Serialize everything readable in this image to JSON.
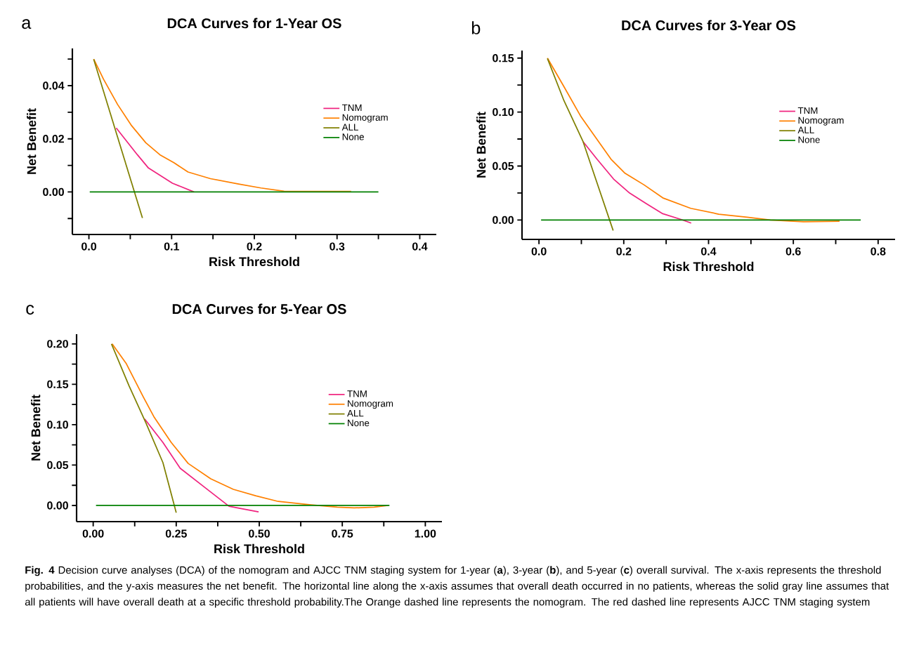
{
  "chart_data": [
    {
      "type": "line",
      "title": "DCA Curves for 1-Year OS",
      "xlabel": "Risk Threshold",
      "ylabel": "Net Benefit",
      "legend": "right",
      "annotations": [
        "a",
        "**Fig. 4** Decision curve analyses (DCA) of the nomogram and AJCC TNM staging system for 1-year (**a**), 3-year (**b**), and 5-year (**c**) overall survival. The x-axis represents the threshold probabilities, and the y-axis measures the net benefit. The horizontal line along the x-axis assumes that overall death occurred in no patients, whereas the solid gray line assumes that all patients will have overall death at a specific threshold probability.The Orange dashed line represents the nomogram. The red dashed line represents AJCC TNM staging system"
      ],
      "xlim": [
        -0.02,
        0.42
      ],
      "ylim": [
        -0.016,
        0.054
      ],
      "xticks": [
        {
          "value": 0,
          "label": "0.0"
        },
        {
          "value": 0.05,
          "label": null
        },
        {
          "value": 0.1,
          "label": "0.1"
        },
        {
          "value": 0.15,
          "label": null
        },
        {
          "value": 0.2,
          "label": "0.2"
        },
        {
          "value": 0.25,
          "label": null
        },
        {
          "value": 0.3,
          "label": "0.3"
        },
        {
          "value": 0.35,
          "label": null
        },
        {
          "value": 0.4,
          "label": "0.4"
        }
      ],
      "yticks": [
        {
          "value": -0.01,
          "label": null
        },
        {
          "value": 0,
          "label": "0.00"
        },
        {
          "value": 0.01,
          "label": null
        },
        {
          "value": 0.02,
          "label": "0.02"
        },
        {
          "value": 0.03,
          "label": null
        },
        {
          "value": 0.04,
          "label": "0.04"
        },
        {
          "value": 0.05,
          "label": null
        }
      ],
      "series": [
        {
          "name": "TNM",
          "color": "#f0247f",
          "x": [
            0.033,
            0.0586,
            0.072,
            0.101,
            0.127
          ],
          "values": [
            0.0241,
            0.014,
            0.009,
            0.0033,
            0.0
          ]
        },
        {
          "name": "Nomogram",
          "color": "#ff8000",
          "x": [
            0.0058,
            0.0177,
            0.0347,
            0.0517,
            0.0688,
            0.0858,
            0.1028,
            0.1198,
            0.147,
            0.181,
            0.208,
            0.236,
            0.283,
            0.317
          ],
          "values": [
            0.05,
            0.0424,
            0.0329,
            0.0249,
            0.0185,
            0.014,
            0.011,
            0.0075,
            0.005,
            0.003,
            0.0015,
            0.0003,
            0.0002,
            0.0002
          ]
        },
        {
          "name": "ALL",
          "color": "#808000",
          "x": [
            0.0058,
            0.0647
          ],
          "values": [
            0.0499,
            -0.0098
          ]
        },
        {
          "name": "None",
          "color": "#008000",
          "x": [
            0.001,
            0.35
          ],
          "values": [
            0,
            0
          ]
        }
      ]
    },
    {
      "type": "line",
      "title": "DCA Curves for 3-Year OS",
      "xlabel": "Risk Threshold",
      "ylabel": "Net Benefit",
      "legend": "right",
      "annotations": [
        "b"
      ],
      "xlim": [
        -0.04,
        0.84
      ],
      "ylim": [
        -0.018,
        0.157
      ],
      "xticks": [
        {
          "value": 0,
          "label": "0.0"
        },
        {
          "value": 0.1,
          "label": null
        },
        {
          "value": 0.2,
          "label": "0.2"
        },
        {
          "value": 0.3,
          "label": null
        },
        {
          "value": 0.4,
          "label": "0.4"
        },
        {
          "value": 0.5,
          "label": null
        },
        {
          "value": 0.6,
          "label": "0.6"
        },
        {
          "value": 0.7,
          "label": null
        },
        {
          "value": 0.8,
          "label": "0.8"
        }
      ],
      "yticks": [
        {
          "value": 0,
          "label": "0.00"
        },
        {
          "value": 0.025,
          "label": null
        },
        {
          "value": 0.05,
          "label": "0.05"
        },
        {
          "value": 0.075,
          "label": null
        },
        {
          "value": 0.1,
          "label": "0.10"
        },
        {
          "value": 0.125,
          "label": null
        },
        {
          "value": 0.15,
          "label": "0.15"
        }
      ],
      "series": [
        {
          "name": "TNM",
          "color": "#f0247f",
          "x": [
            0.104,
            0.137,
            0.176,
            0.214,
            0.253,
            0.292,
            0.336,
            0.359
          ],
          "values": [
            0.0726,
            0.0563,
            0.0379,
            0.0249,
            0.0152,
            0.0058,
            0.0004,
            -0.0029
          ]
        },
        {
          "name": "Nomogram",
          "color": "#ff8000",
          "x": [
            0.02,
            0.059,
            0.098,
            0.131,
            0.17,
            0.203,
            0.248,
            0.292,
            0.358,
            0.424,
            0.491,
            0.546,
            0.624,
            0.709
          ],
          "values": [
            0.15,
            0.1235,
            0.0964,
            0.078,
            0.0563,
            0.0433,
            0.0325,
            0.0205,
            0.0108,
            0.0054,
            0.0026,
            0,
            -0.0016,
            -0.0011
          ]
        },
        {
          "name": "ALL",
          "color": "#808000",
          "x": [
            0.02,
            0.059,
            0.104,
            0.175
          ],
          "values": [
            0.1496,
            0.1105,
            0.0726,
            -0.0098
          ]
        },
        {
          "name": "None",
          "color": "#008000",
          "x": [
            0.005,
            0.759
          ],
          "values": [
            0,
            0
          ]
        }
      ]
    },
    {
      "type": "line",
      "title": "DCA Curves for 5-Year OS",
      "xlabel": "Risk Threshold",
      "ylabel": "Net Benefit",
      "legend": "right",
      "annotations": [
        "c"
      ],
      "xlim": [
        -0.05,
        1.05
      ],
      "ylim": [
        -0.02,
        0.212
      ],
      "xticks": [
        {
          "value": 0,
          "label": "0.00"
        },
        {
          "value": 0.125,
          "label": null
        },
        {
          "value": 0.25,
          "label": "0.25"
        },
        {
          "value": 0.375,
          "label": null
        },
        {
          "value": 0.5,
          "label": "0.50"
        },
        {
          "value": 0.625,
          "label": null
        },
        {
          "value": 0.75,
          "label": "0.75"
        },
        {
          "value": 0.875,
          "label": null
        },
        {
          "value": 1,
          "label": "1.00"
        }
      ],
      "yticks": [
        {
          "value": 0,
          "label": "0.00"
        },
        {
          "value": 0.025,
          "label": null
        },
        {
          "value": 0.05,
          "label": "0.05"
        },
        {
          "value": 0.075,
          "label": null
        },
        {
          "value": 0.1,
          "label": "0.10"
        },
        {
          "value": 0.125,
          "label": null
        },
        {
          "value": 0.15,
          "label": "0.15"
        },
        {
          "value": 0.175,
          "label": null
        },
        {
          "value": 0.2,
          "label": "0.20"
        }
      ],
      "series": [
        {
          "name": "TNM",
          "color": "#f0247f",
          "x": [
            0.155,
            0.21,
            0.262,
            0.337,
            0.409,
            0.498
          ],
          "values": [
            0.107,
            0.078,
            0.046,
            0.022,
            -0.001,
            -0.008
          ]
        },
        {
          "name": "Nomogram",
          "color": "#ff8000",
          "x": [
            0.057,
            0.099,
            0.15,
            0.184,
            0.235,
            0.286,
            0.354,
            0.422,
            0.489,
            0.557,
            0.651,
            0.735,
            0.786,
            0.846,
            0.888
          ],
          "values": [
            0.2,
            0.176,
            0.135,
            0.109,
            0.078,
            0.052,
            0.033,
            0.02,
            0.012,
            0.005,
            0.001,
            -0.002,
            -0.003,
            -0.002,
            0
          ]
        },
        {
          "name": "ALL",
          "color": "#808000",
          "x": [
            0.055,
            0.108,
            0.159,
            0.21,
            0.25
          ],
          "values": [
            0.2,
            0.148,
            0.102,
            0.053,
            -0.009
          ]
        },
        {
          "name": "None",
          "color": "#008000",
          "x": [
            0.0085,
            0.892
          ],
          "values": [
            0,
            0
          ]
        }
      ]
    }
  ]
}
